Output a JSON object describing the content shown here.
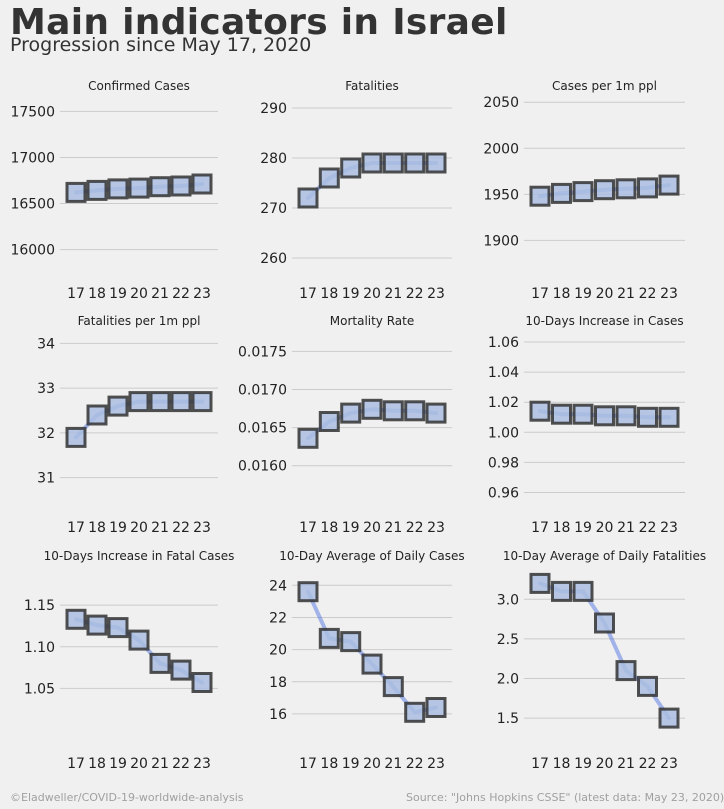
{
  "title": "Main indicators in Israel",
  "subtitle": "Progression since May 17, 2020",
  "footer": {
    "credit": "©Eladweller/COVID-19-worldwide-analysis",
    "source": "Source: \"Johns Hopkins CSSE\" (latest data: May 23, 2020)"
  },
  "colors": {
    "background": "#f0f0f0",
    "line": "#4169e1",
    "marker_fill": "#aabde0",
    "marker_edge": "#333333",
    "grid": "#cbcbcb",
    "text": "#333333"
  },
  "chart_data": [
    {
      "type": "line",
      "title": "Confirmed Cases",
      "x": [
        17,
        18,
        19,
        20,
        21,
        22,
        23
      ],
      "values": [
        16621,
        16643,
        16659,
        16667,
        16683,
        16690,
        16712
      ],
      "ylim": [
        15800,
        17700
      ],
      "yticks": [
        16000,
        16500,
        17000,
        17500
      ],
      "yticklabels": [
        "16000",
        "16500",
        "17000",
        "17500"
      ],
      "grid": true
    },
    {
      "type": "line",
      "title": "Fatalities",
      "x": [
        17,
        18,
        19,
        20,
        21,
        22,
        23
      ],
      "values": [
        272,
        276,
        278,
        279,
        279,
        279,
        279
      ],
      "ylim": [
        258,
        293
      ],
      "yticks": [
        260,
        270,
        280,
        290
      ],
      "yticklabels": [
        "260",
        "270",
        "280",
        "290"
      ],
      "grid": true
    },
    {
      "type": "line",
      "title": "Cases per 1m ppl",
      "x": [
        17,
        18,
        19,
        20,
        21,
        22,
        23
      ],
      "values": [
        1948,
        1951,
        1953,
        1955,
        1956,
        1957,
        1960
      ],
      "ylim": [
        1870,
        2060
      ],
      "yticks": [
        1900,
        1950,
        2000,
        2050
      ],
      "yticklabels": [
        "1900",
        "1950",
        "2000",
        "2050"
      ],
      "grid": true
    },
    {
      "type": "line",
      "title": "Fatalities per 1m ppl",
      "x": [
        17,
        18,
        19,
        20,
        21,
        22,
        23
      ],
      "values": [
        31.9,
        32.4,
        32.6,
        32.7,
        32.7,
        32.7,
        32.7
      ],
      "ylim": [
        30.5,
        34.3
      ],
      "yticks": [
        31,
        32,
        33,
        34
      ],
      "yticklabels": [
        "31",
        "32",
        "33",
        "34"
      ],
      "grid": true
    },
    {
      "type": "line",
      "title": "Mortality Rate",
      "x": [
        17,
        18,
        19,
        20,
        21,
        22,
        23
      ],
      "values": [
        0.01636,
        0.01658,
        0.01669,
        0.01674,
        0.01672,
        0.01672,
        0.01669
      ],
      "ylim": [
        0.01555,
        0.01778
      ],
      "yticks": [
        0.016,
        0.0165,
        0.017,
        0.0175
      ],
      "yticklabels": [
        "0.0160",
        "0.0165",
        "0.0170",
        "0.0175"
      ],
      "grid": true
    },
    {
      "type": "line",
      "title": "10-Days Increase in Cases",
      "x": [
        17,
        18,
        19,
        20,
        21,
        22,
        23
      ],
      "values": [
        1.014,
        1.012,
        1.012,
        1.011,
        1.011,
        1.01,
        1.01
      ],
      "ylim": [
        0.955,
        1.068
      ],
      "yticks": [
        0.96,
        0.98,
        1.0,
        1.02,
        1.04,
        1.06
      ],
      "yticklabels": [
        "0.96",
        "0.98",
        "1.00",
        "1.02",
        "1.04",
        "1.06"
      ],
      "grid": true
    },
    {
      "type": "line",
      "title": "10-Days Increase in Fatal Cases",
      "x": [
        17,
        18,
        19,
        20,
        21,
        22,
        23
      ],
      "values": [
        1.133,
        1.126,
        1.123,
        1.108,
        1.08,
        1.072,
        1.057
      ],
      "ylim": [
        1.0,
        1.197
      ],
      "yticks": [
        1.05,
        1.1,
        1.15
      ],
      "yticklabels": [
        "1.05",
        "1.10",
        "1.15"
      ],
      "grid": true
    },
    {
      "type": "line",
      "title": "10-Day Average of Daily Cases",
      "x": [
        17,
        18,
        19,
        20,
        21,
        22,
        23
      ],
      "values": [
        23.6,
        20.7,
        20.5,
        19.1,
        17.7,
        16.1,
        16.4
      ],
      "ylim": [
        15.0,
        25.2
      ],
      "yticks": [
        16,
        18,
        20,
        22,
        24
      ],
      "yticklabels": [
        "16",
        "18",
        "20",
        "22",
        "24"
      ],
      "grid": true
    },
    {
      "type": "line",
      "title": "10-Day Average of Daily Fatalities",
      "x": [
        17,
        18,
        19,
        20,
        21,
        22,
        23
      ],
      "values": [
        3.2,
        3.1,
        3.1,
        2.7,
        2.1,
        1.9,
        1.5
      ],
      "ylim": [
        1.35,
        3.42
      ],
      "yticks": [
        1.5,
        2.0,
        2.5,
        3.0
      ],
      "yticklabels": [
        "1.5",
        "2.0",
        "2.5",
        "3.0"
      ],
      "grid": true
    }
  ]
}
